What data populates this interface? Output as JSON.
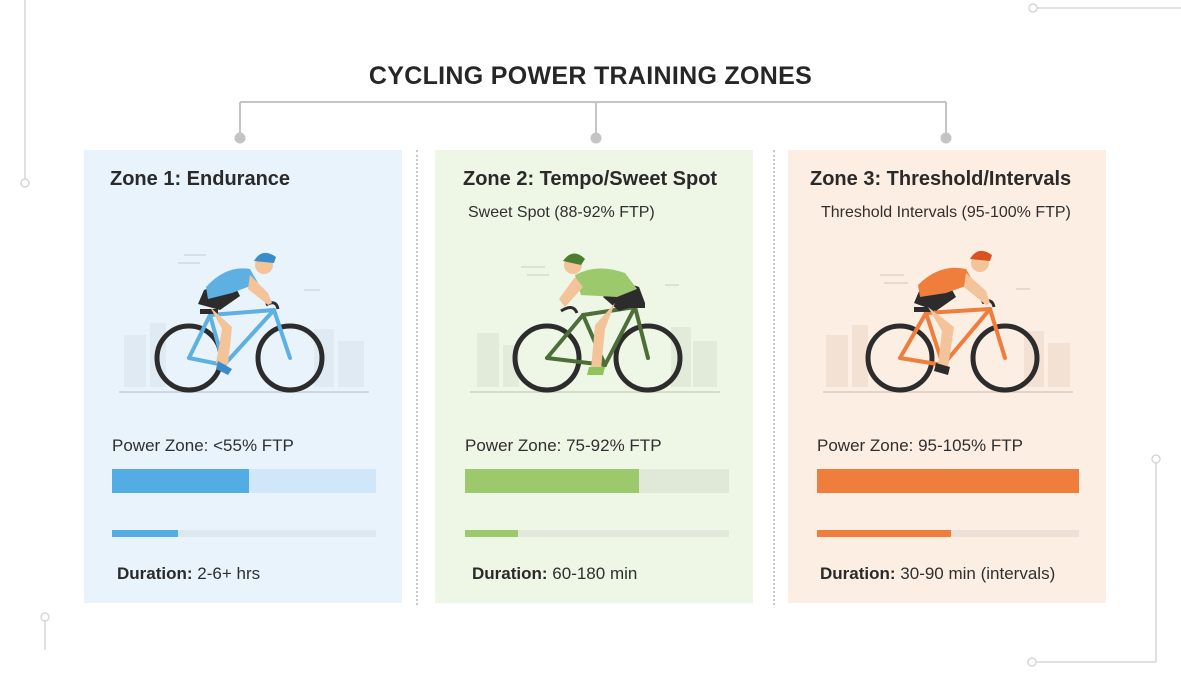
{
  "title": "CYCLING POWER TRAINING ZONES",
  "zones": [
    {
      "title": "Zone 1: Endurance",
      "subtitle": "",
      "power_label": "Power Zone: <55% FTP",
      "power_level": 0.52,
      "duration_key": "Duration:",
      "duration_value": "2-6+ hrs",
      "duration_level": 0.25,
      "colors": {
        "bg": "#e8f3fc",
        "accent": "#53ace3",
        "track": "#cfe7f8",
        "dur_track": "#dde7ef",
        "jersey": "#5eb0e3",
        "frame": "#5eb0e3"
      }
    },
    {
      "title": "Zone 2: Tempo/Sweet Spot",
      "subtitle": "Sweet Spot (88-92% FTP)",
      "power_label": "Power Zone: 75-92% FTP",
      "power_level": 0.66,
      "duration_key": "Duration:",
      "duration_value": "60-180 min",
      "duration_level": 0.2,
      "colors": {
        "bg": "#eef6e6",
        "accent": "#9cc96b",
        "track": "#dfe9d5",
        "dur_track": "#e2e8dc",
        "jersey": "#9cc96b",
        "frame": "#4d6e39"
      }
    },
    {
      "title": "Zone 3: Threshold/Intervals",
      "subtitle": "Threshold Intervals (95-100% FTP)",
      "power_label": "Power Zone: 95-105% FTP",
      "power_level": 1.0,
      "duration_key": "Duration:",
      "duration_value": "30-90 min (intervals)",
      "duration_level": 0.51,
      "colors": {
        "bg": "#fdeee3",
        "accent": "#ef7d3b",
        "track": "#f7dccb",
        "dur_track": "#ece0d8",
        "jersey": "#ef7d3b",
        "frame": "#ef7d3b"
      }
    }
  ],
  "icons": [
    "cyclist-icon",
    "bicycle-icon"
  ]
}
